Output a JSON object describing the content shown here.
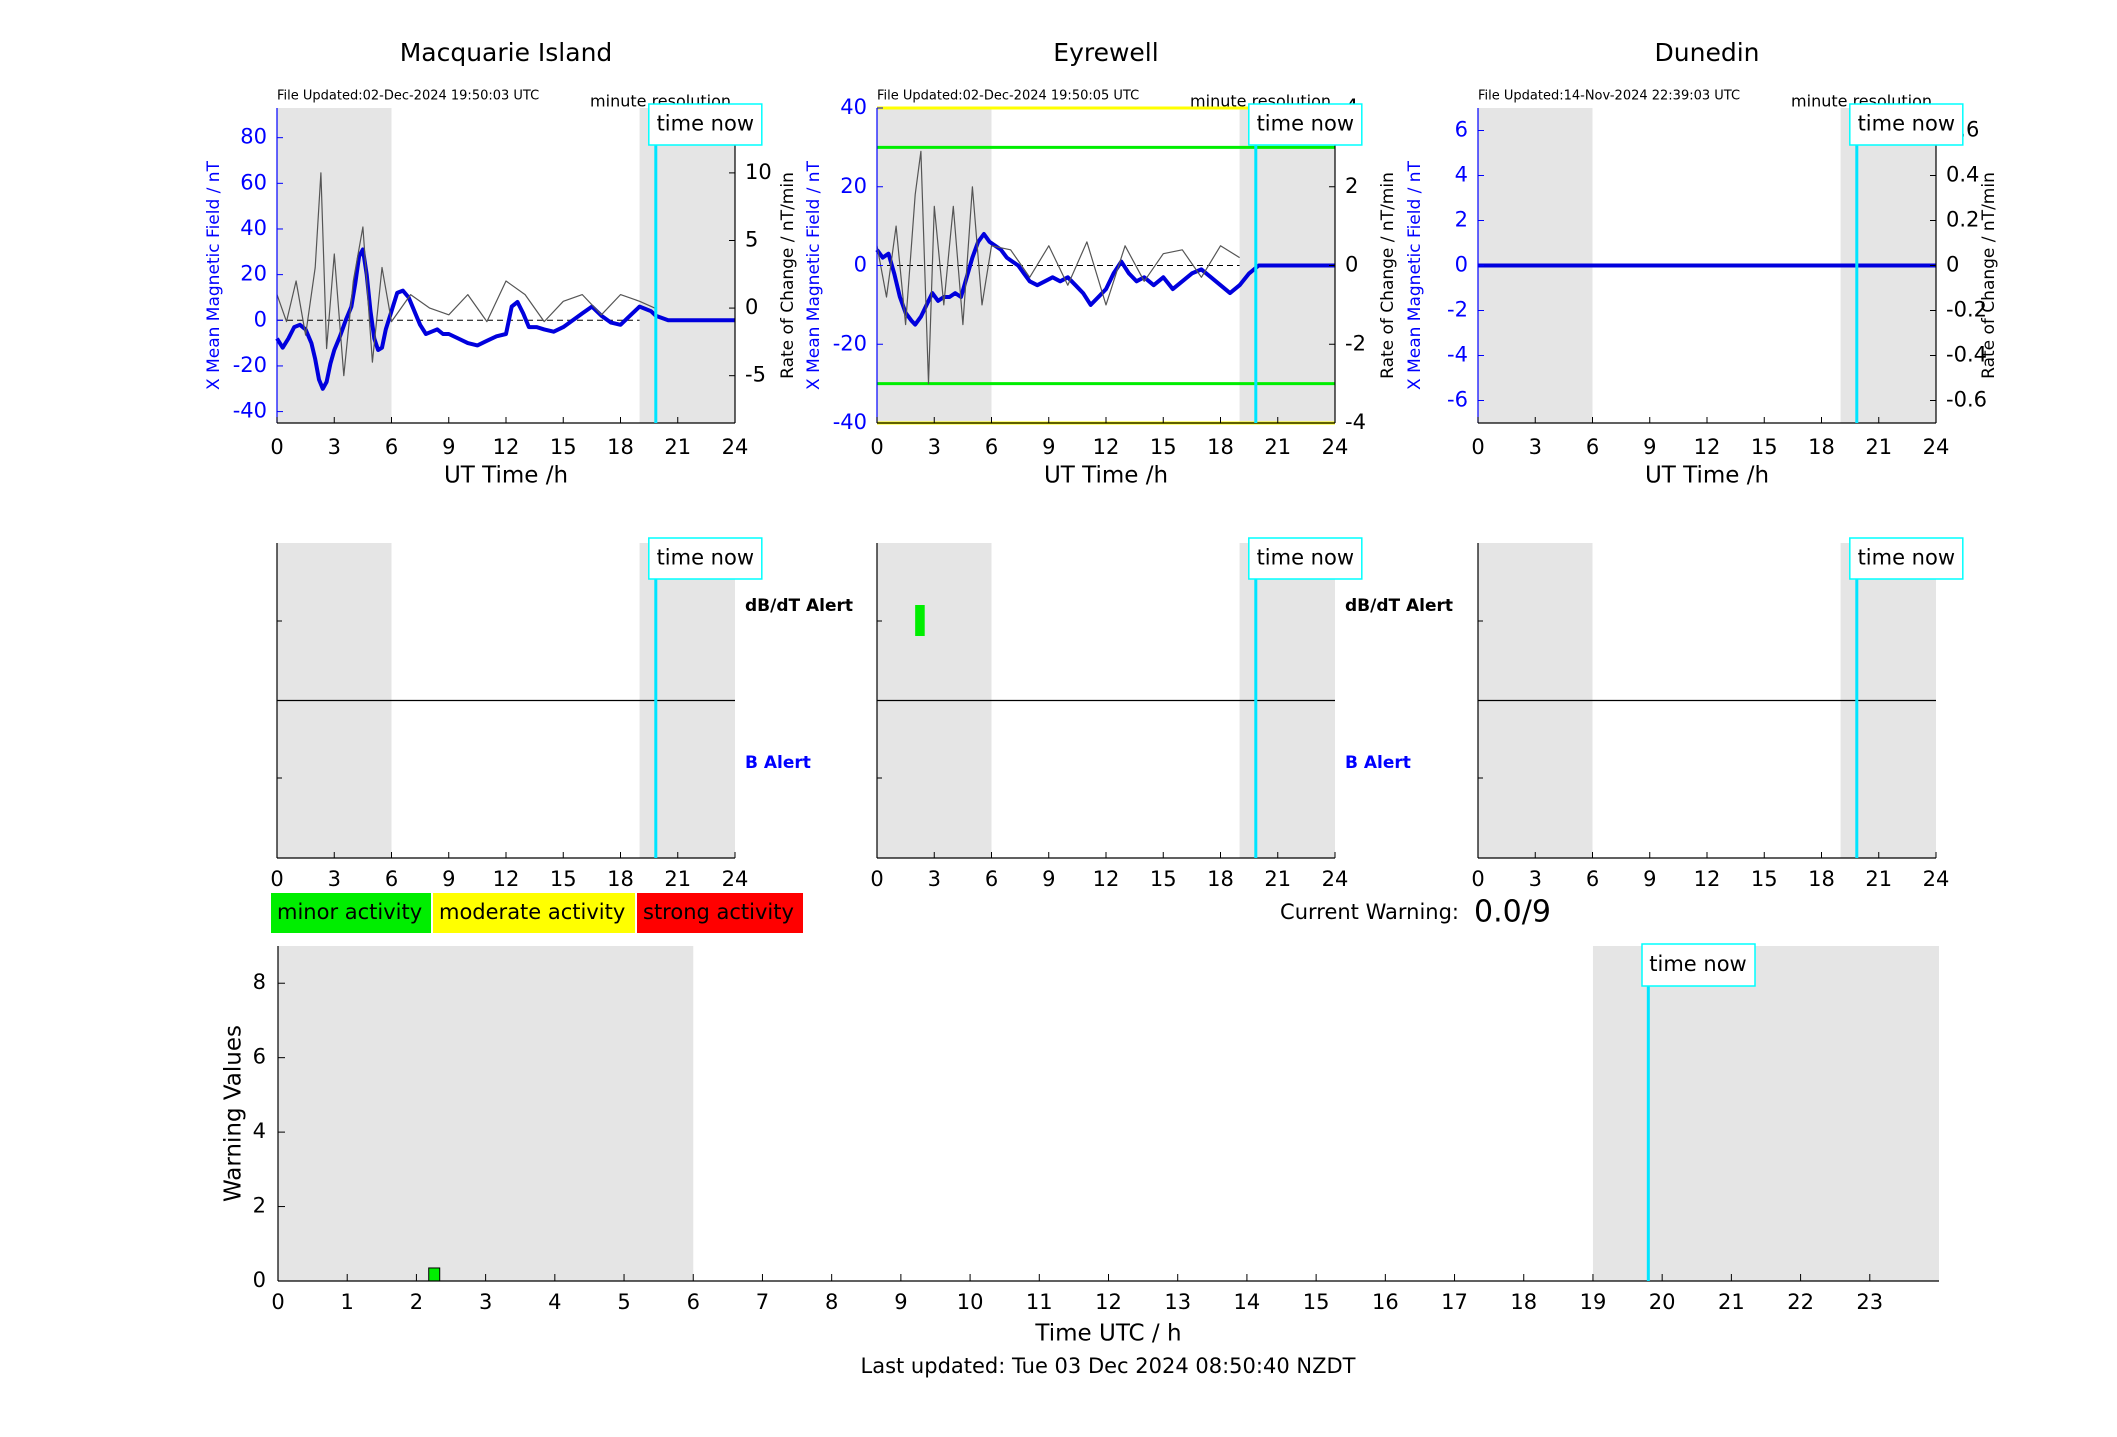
{
  "figure": {
    "now_label": "time now",
    "now_hour": 19.85,
    "x_ticks": [
      "0",
      "3",
      "6",
      "9",
      "12",
      "15",
      "18",
      "21",
      "24"
    ],
    "x_label": "UT Time /h",
    "left_ylabel": "X Mean Magnetic Field / nT",
    "right_ylabel": "Rate of Change / nT/min",
    "resolution_label": "minute resolution",
    "dbdt_alert_label": "dB/dT Alert",
    "b_alert_label": "B Alert",
    "night_shade": [
      [
        0,
        6
      ],
      [
        19,
        24
      ]
    ]
  },
  "stations": [
    {
      "name": "Macquarie Island",
      "file_updated": "File Updated:02-Dec-2024 19:50:03 UTC",
      "ylim": [
        -45,
        93
      ],
      "yticks": [
        "-40",
        "-20",
        "0",
        "20",
        "40",
        "60",
        "80"
      ],
      "rlim": [
        -8.5,
        14.8
      ],
      "rticks": [
        "-5",
        "0",
        "5",
        "10"
      ],
      "show_right_label": true,
      "thresholds": [],
      "dbdt_alerts": [],
      "b_alerts": []
    },
    {
      "name": "Eyrewell",
      "file_updated": "File Updated:02-Dec-2024 19:50:05 UTC",
      "ylim": [
        -40,
        40
      ],
      "yticks": [
        "-40",
        "-20",
        "0",
        "20",
        "40"
      ],
      "rlim": [
        -4,
        4
      ],
      "rticks": [
        "-4",
        "-2",
        "0",
        "2",
        "4"
      ],
      "show_right_label": true,
      "thresholds": [
        {
          "value": 40,
          "color": "#ffff00"
        },
        {
          "value": 30,
          "color": "#00ee00"
        },
        {
          "value": -30,
          "color": "#00ee00"
        },
        {
          "value": -40,
          "color": "#ffff00"
        }
      ],
      "dbdt_alerts": [
        {
          "start": 2.0,
          "end": 2.5,
          "color": "#00ee00"
        }
      ],
      "b_alerts": []
    },
    {
      "name": "Dunedin",
      "file_updated": "File Updated:14-Nov-2024 22:39:03 UTC",
      "ylim": [
        -7,
        7
      ],
      "yticks": [
        "-6",
        "-4",
        "-2",
        "0",
        "2",
        "4",
        "6"
      ],
      "rlim": [
        -0.7,
        0.7
      ],
      "rticks": [
        "-0.6",
        "-0.4",
        "-0.2",
        "0",
        "0.2",
        "0.4",
        "0.6"
      ],
      "show_right_label": true,
      "thresholds": [],
      "dbdt_alerts": [],
      "b_alerts": []
    }
  ],
  "legend": {
    "items": [
      {
        "label": "minor activity",
        "color": "#00ee00"
      },
      {
        "label": "moderate activity",
        "color": "#ffff00"
      },
      {
        "label": "strong activity",
        "color": "#ff0000"
      }
    ]
  },
  "current_warning": {
    "label": "Current Warning:",
    "value": "0.0/9"
  },
  "warning_chart": {
    "ylabel": "Warning Values",
    "xlabel": "Time UTC / h",
    "xticks": [
      "0",
      "1",
      "2",
      "3",
      "4",
      "5",
      "6",
      "7",
      "8",
      "9",
      "10",
      "11",
      "12",
      "13",
      "14",
      "15",
      "16",
      "17",
      "18",
      "19",
      "20",
      "21",
      "22",
      "23"
    ],
    "yticks": [
      "0",
      "2",
      "4",
      "6",
      "8"
    ],
    "ylim": [
      0,
      9
    ],
    "xlim": [
      0,
      24
    ],
    "night_shade": [
      [
        0,
        6
      ],
      [
        19,
        24
      ]
    ],
    "now_hour": 19.8
  },
  "last_updated": "Last updated: Tue 03 Dec 2024 08:50:40 NZDT",
  "chart_data": [
    {
      "type": "line",
      "title": "Macquarie Island",
      "xlabel": "UT Time /h",
      "ylabel": "X Mean Magnetic Field / nT",
      "y2label": "Rate of Change / nT/min",
      "xlim": [
        0,
        24
      ],
      "ylim": [
        -45,
        93
      ],
      "y2lim": [
        -8.5,
        14.8
      ],
      "series": [
        {
          "name": "X Mean Magnetic Field",
          "color": "#0000dd",
          "x": [
            0,
            0.3,
            0.6,
            0.9,
            1.2,
            1.5,
            1.8,
            2.0,
            2.2,
            2.4,
            2.6,
            2.8,
            3.0,
            3.3,
            3.6,
            3.9,
            4.1,
            4.3,
            4.5,
            4.7,
            4.9,
            5.1,
            5.3,
            5.5,
            5.7,
            6.0,
            6.3,
            6.6,
            6.9,
            7.2,
            7.5,
            7.8,
            8.1,
            8.4,
            8.7,
            9.0,
            9.5,
            10.0,
            10.5,
            11.0,
            11.5,
            12.0,
            12.3,
            12.6,
            12.9,
            13.2,
            13.6,
            14.0,
            14.5,
            15.0,
            15.5,
            16.0,
            16.5,
            17.0,
            17.5,
            18.0,
            18.5,
            19.0,
            19.3,
            19.6,
            19.85,
            20.5,
            21.0,
            22.0,
            23.0,
            24.0
          ],
          "y": [
            -8,
            -12,
            -8,
            -3,
            -2,
            -4,
            -10,
            -17,
            -26,
            -30,
            -27,
            -19,
            -13,
            -7,
            0,
            6,
            16,
            28,
            31,
            20,
            4,
            -8,
            -13,
            -12,
            -4,
            4,
            12,
            13,
            10,
            4,
            -2,
            -6,
            -5,
            -4,
            -6,
            -6,
            -8,
            -10,
            -11,
            -9,
            -7,
            -6,
            6,
            8,
            3,
            -3,
            -3,
            -4,
            -5,
            -3,
            0,
            3,
            6,
            2,
            -1,
            -2,
            2,
            6,
            5,
            4,
            2,
            0,
            0,
            0,
            0,
            0
          ]
        },
        {
          "name": "Rate of Change",
          "color": "#555555",
          "x": [
            0,
            0.5,
            1,
            1.5,
            2,
            2.3,
            2.6,
            3,
            3.5,
            4,
            4.5,
            5,
            5.5,
            6,
            7,
            8,
            9,
            10,
            11,
            12,
            13,
            14,
            15,
            16,
            17,
            18,
            19,
            19.8
          ],
          "y": [
            1,
            -1,
            2,
            -2,
            3,
            10,
            -3,
            4,
            -5,
            2,
            6,
            -4,
            3,
            -1,
            1,
            0,
            -0.5,
            1,
            -1,
            2,
            1,
            -1,
            0.5,
            1,
            -0.5,
            1,
            0.5,
            0
          ]
        }
      ]
    },
    {
      "type": "line",
      "title": "Eyrewell",
      "xlabel": "UT Time /h",
      "ylabel": "X Mean Magnetic Field / nT",
      "y2label": "Rate of Change / nT/min",
      "xlim": [
        0,
        24
      ],
      "ylim": [
        -40,
        40
      ],
      "y2lim": [
        -4,
        4
      ],
      "series": [
        {
          "name": "X Mean Magnetic Field",
          "color": "#0000dd",
          "x": [
            0,
            0.3,
            0.6,
            0.9,
            1.2,
            1.5,
            1.8,
            2.0,
            2.3,
            2.6,
            2.9,
            3.2,
            3.5,
            3.8,
            4.1,
            4.4,
            4.7,
            5.0,
            5.3,
            5.6,
            5.9,
            6.2,
            6.5,
            6.8,
            7.1,
            7.4,
            7.7,
            8.0,
            8.4,
            8.8,
            9.2,
            9.6,
            10.0,
            10.4,
            10.8,
            11.2,
            11.6,
            12.0,
            12.4,
            12.8,
            13.2,
            13.6,
            14.0,
            14.5,
            15.0,
            15.5,
            16.0,
            16.5,
            17.0,
            17.5,
            18.0,
            18.5,
            19.0,
            19.5,
            20.0,
            21.0,
            22.0,
            23.0,
            24.0
          ],
          "y": [
            4,
            2,
            3,
            -2,
            -8,
            -12,
            -14,
            -15,
            -13,
            -10,
            -7,
            -9,
            -8,
            -8,
            -7,
            -8,
            -3,
            2,
            6,
            8,
            6,
            5,
            4,
            2,
            1,
            0,
            -2,
            -4,
            -5,
            -4,
            -3,
            -4,
            -3,
            -5,
            -7,
            -10,
            -8,
            -6,
            -2,
            1,
            -2,
            -4,
            -3,
            -5,
            -3,
            -6,
            -4,
            -2,
            -1,
            -3,
            -5,
            -7,
            -5,
            -2,
            0,
            0,
            0,
            0,
            0
          ]
        },
        {
          "name": "Rate of Change",
          "color": "#555555",
          "x": [
            0,
            0.5,
            1,
            1.5,
            2,
            2.3,
            2.7,
            3,
            3.5,
            4,
            4.5,
            5,
            5.5,
            6,
            7,
            8,
            9,
            10,
            11,
            12,
            13,
            14,
            15,
            16,
            17,
            18,
            19
          ],
          "y": [
            0.5,
            -0.8,
            1,
            -1.5,
            1.8,
            2.9,
            -3,
            1.5,
            -1,
            1.5,
            -1.5,
            2,
            -1,
            0.5,
            0.4,
            -0.3,
            0.5,
            -0.5,
            0.6,
            -1,
            0.5,
            -0.4,
            0.3,
            0.4,
            -0.3,
            0.5,
            0.2
          ]
        }
      ]
    },
    {
      "type": "line",
      "title": "Dunedin",
      "xlabel": "UT Time /h",
      "ylabel": "X Mean Magnetic Field / nT",
      "y2label": "Rate of Change / nT/min",
      "xlim": [
        0,
        24
      ],
      "ylim": [
        -7,
        7
      ],
      "y2lim": [
        -0.7,
        0.7
      ],
      "series": [
        {
          "name": "X Mean Magnetic Field",
          "color": "#0000dd",
          "x": [
            0,
            24
          ],
          "y": [
            0,
            0
          ]
        }
      ]
    },
    {
      "type": "bar",
      "title": "",
      "xlabel": "Time UTC / h",
      "ylabel": "Warning Values",
      "xlim": [
        0,
        24
      ],
      "ylim": [
        0,
        9
      ],
      "bars": [
        {
          "x": 2.25,
          "value": 0.35,
          "color": "#00ee00"
        }
      ]
    }
  ]
}
